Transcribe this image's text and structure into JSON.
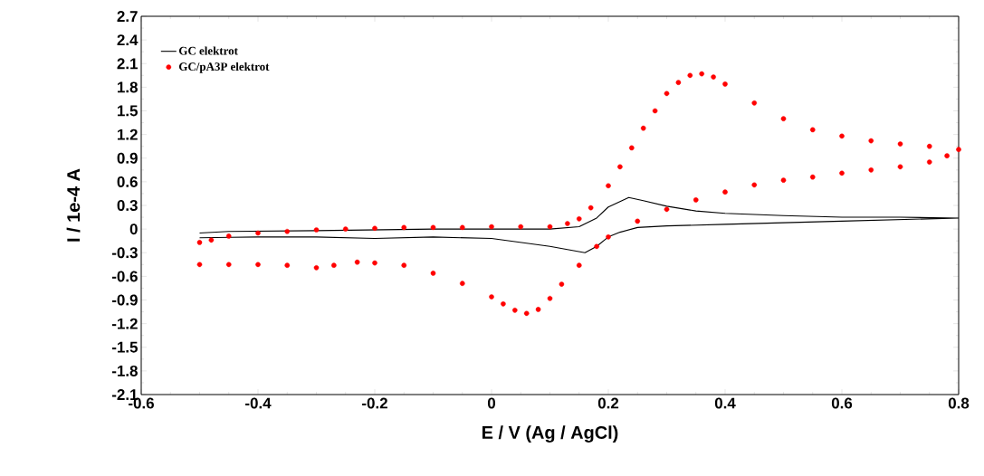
{
  "chart_data": {
    "type": "line",
    "xlabel": "E / V (Ag / AgCl)",
    "ylabel": "I / 1e-4 A",
    "xlim": [
      -0.6,
      0.8
    ],
    "ylim": [
      -2.1,
      2.7
    ],
    "xticks": [
      -0.6,
      -0.4,
      -0.2,
      0,
      0.2,
      0.4,
      0.6,
      0.8
    ],
    "yticks": [
      -2.1,
      -1.8,
      -1.5,
      -1.2,
      -0.9,
      -0.6,
      -0.3,
      0,
      0.3,
      0.6,
      0.9,
      1.2,
      1.5,
      1.8,
      2.1,
      2.4,
      2.7
    ],
    "legend": "top left",
    "series": [
      {
        "name": "GC elektrot",
        "color": "#000000",
        "x": [
          -0.5,
          -0.45,
          -0.3,
          -0.1,
          0.1,
          0.15,
          0.18,
          0.2,
          0.235,
          0.26,
          0.3,
          0.35,
          0.4,
          0.5,
          0.6,
          0.7,
          0.8,
          0.6,
          0.4,
          0.3,
          0.25,
          0.22,
          0.2,
          0.18,
          0.16,
          0.13,
          0.1,
          0.05,
          0.0,
          -0.1,
          -0.2,
          -0.3,
          -0.4,
          -0.5
        ],
        "values": [
          -0.05,
          -0.03,
          -0.02,
          0.0,
          0.0,
          0.03,
          0.14,
          0.28,
          0.4,
          0.36,
          0.29,
          0.23,
          0.2,
          0.17,
          0.15,
          0.15,
          0.14,
          0.1,
          0.06,
          0.04,
          0.02,
          -0.04,
          -0.1,
          -0.22,
          -0.3,
          -0.26,
          -0.22,
          -0.17,
          -0.12,
          -0.1,
          -0.12,
          -0.1,
          -0.1,
          -0.11
        ]
      },
      {
        "name": "GC/pA3P elektrot",
        "type": "scatter",
        "marker": "circle",
        "color": "#ff0000",
        "x": [
          -0.5,
          -0.48,
          -0.45,
          -0.4,
          -0.35,
          -0.3,
          -0.25,
          -0.2,
          -0.15,
          -0.1,
          -0.05,
          0.0,
          0.05,
          0.1,
          0.13,
          0.15,
          0.17,
          0.2,
          0.22,
          0.24,
          0.26,
          0.28,
          0.3,
          0.32,
          0.34,
          0.36,
          0.38,
          0.4,
          0.45,
          0.5,
          0.55,
          0.6,
          0.65,
          0.7,
          0.75,
          0.8,
          0.78,
          0.75,
          0.7,
          0.65,
          0.6,
          0.55,
          0.5,
          0.45,
          0.4,
          0.35,
          0.3,
          0.25,
          0.2,
          0.18,
          0.15,
          0.12,
          0.1,
          0.08,
          0.06,
          0.04,
          0.02,
          0.0,
          -0.05,
          -0.1,
          -0.15,
          -0.2,
          -0.23,
          -0.27,
          -0.3,
          -0.35,
          -0.4,
          -0.45,
          -0.5
        ],
        "values": [
          -0.17,
          -0.14,
          -0.09,
          -0.05,
          -0.03,
          -0.01,
          0.0,
          0.01,
          0.02,
          0.02,
          0.02,
          0.03,
          0.03,
          0.03,
          0.07,
          0.13,
          0.27,
          0.55,
          0.79,
          1.03,
          1.28,
          1.5,
          1.72,
          1.86,
          1.95,
          1.97,
          1.93,
          1.84,
          1.6,
          1.4,
          1.26,
          1.18,
          1.12,
          1.08,
          1.05,
          1.01,
          0.93,
          0.85,
          0.79,
          0.75,
          0.71,
          0.66,
          0.62,
          0.56,
          0.47,
          0.37,
          0.25,
          0.1,
          -0.1,
          -0.22,
          -0.46,
          -0.7,
          -0.88,
          -1.02,
          -1.07,
          -1.03,
          -0.95,
          -0.86,
          -0.69,
          -0.56,
          -0.46,
          -0.43,
          -0.42,
          -0.46,
          -0.49,
          -0.46,
          -0.45,
          -0.45,
          -0.45
        ]
      }
    ]
  }
}
